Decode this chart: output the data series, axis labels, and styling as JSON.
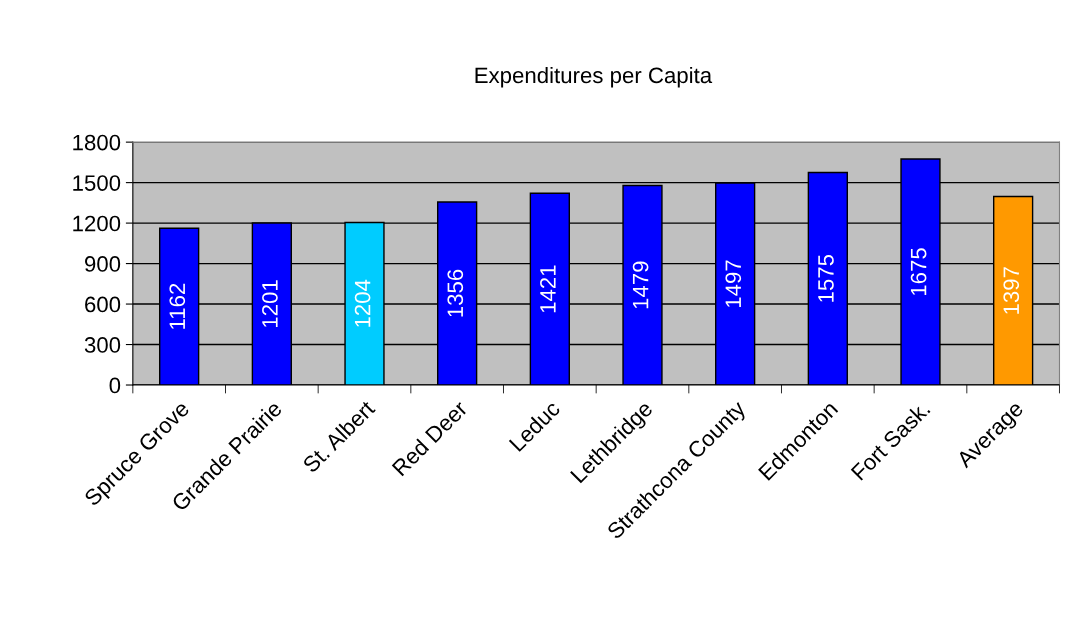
{
  "chart_data": {
    "type": "bar",
    "title": "Expenditures per Capita",
    "categories": [
      "Spruce Grove",
      "Grande Prairie",
      "St. Albert",
      "Red Deer",
      "Leduc",
      "Lethbridge",
      "Strathcona County",
      "Edmonton",
      "Fort Sask.",
      "Average"
    ],
    "values": [
      1162,
      1201,
      1204,
      1356,
      1421,
      1479,
      1497,
      1575,
      1675,
      1397
    ],
    "colors": [
      "#0000ff",
      "#0000ff",
      "#00ccff",
      "#0000ff",
      "#0000ff",
      "#0000ff",
      "#0000ff",
      "#0000ff",
      "#0000ff",
      "#ff9900"
    ],
    "ylim": [
      0,
      1800
    ],
    "yticks": [
      0,
      300,
      600,
      900,
      1200,
      1500,
      1800
    ],
    "grid": "y",
    "data_labels": true
  }
}
